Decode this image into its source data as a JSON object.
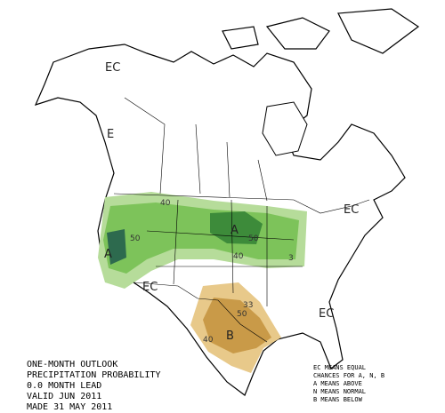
{
  "map": {
    "region_labels": [
      "EC",
      "E",
      "EC",
      "EC",
      "EC",
      "A",
      "A",
      "B"
    ],
    "contour_labels": [
      40,
      50,
      40,
      50,
      3,
      33,
      50,
      40
    ],
    "title_lines": [
      "ONE-MONTH OUTLOOK",
      "PRECIPITATION PROBABILITY",
      "0.0 MONTH LEAD",
      "VALID JUN 2011",
      "MADE 31 MAY 2011"
    ],
    "legend_lines": [
      "EC MEANS EQUAL",
      "CHANCES FOR A, N, B",
      "A MEANS ABOVE",
      "N MEANS NORMAL",
      "B MEANS BELOW"
    ]
  }
}
